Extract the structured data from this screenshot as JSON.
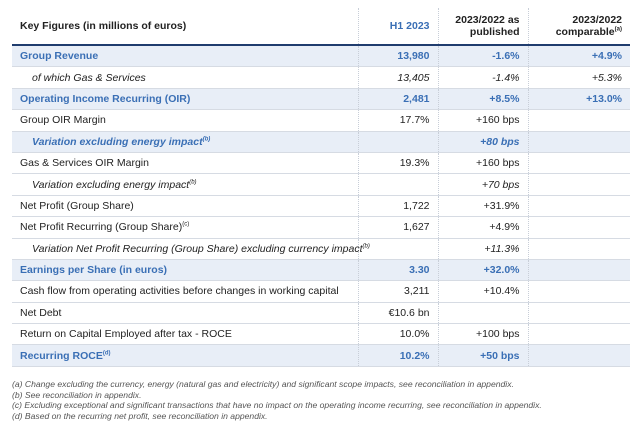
{
  "table": {
    "header": [
      "Key Figures (in millions of euros)",
      "H1 2023",
      "2023/2022 as published",
      "2023/2022 comparable"
    ],
    "header_note": "(a)",
    "rows": [
      {
        "label": "Group Revenue",
        "h1": "13,980",
        "published": "-1.6%",
        "comparable": "+4.9%"
      },
      {
        "label": "of which Gas & Services",
        "h1": "13,405",
        "published": "-1.4%",
        "comparable": "+5.3%"
      },
      {
        "label": "Operating Income Recurring (OIR)",
        "h1": "2,481",
        "published": "+8.5%",
        "comparable": "+13.0%"
      },
      {
        "label": "Group OIR Margin",
        "h1": "17.7%",
        "published": "+160 bps"
      },
      {
        "label": "Variation excluding energy impact",
        "note": "(b)",
        "published": "+80 bps"
      },
      {
        "label": "Gas & Services OIR Margin",
        "h1": "19.3%",
        "published": "+160 bps"
      },
      {
        "label": "Variation excluding energy impact",
        "note": "(b)",
        "published": "+70 bps"
      },
      {
        "label": "Net Profit (Group Share)",
        "h1": "1,722",
        "published": "+31.9%"
      },
      {
        "label": "Net Profit Recurring (Group Share)",
        "note": "(c)",
        "h1": "1,627",
        "published": "+4.9%"
      },
      {
        "label": "Variation Net Profit Recurring (Group Share) excluding currency impact",
        "note": "(b)",
        "published": "+11.3%"
      },
      {
        "label": "Earnings per Share (in euros)",
        "h1": "3.30",
        "published": "+32.0%"
      },
      {
        "label": "Cash flow from operating activities before changes in working capital",
        "h1": "3,211",
        "published": "+10.4%"
      },
      {
        "label": "Net Debt",
        "h1": "€10.6 bn"
      },
      {
        "label": "Return on Capital Employed after tax - ROCE",
        "h1": "10.0%",
        "published": "+100 bps"
      },
      {
        "label": "Recurring ROCE",
        "note": "(d)",
        "h1": "10.2%",
        "published": "+50 bps"
      }
    ]
  },
  "footnotes": [
    "(a) Change excluding the currency, energy (natural gas and electricity) and significant scope impacts, see reconciliation in appendix.",
    "(b) See reconciliation in appendix.",
    "(c) Excluding exceptional and significant transactions that have no impact on the operating income recurring, see reconciliation in appendix.",
    "(d) Based on the recurring net profit, see reconciliation in appendix."
  ]
}
